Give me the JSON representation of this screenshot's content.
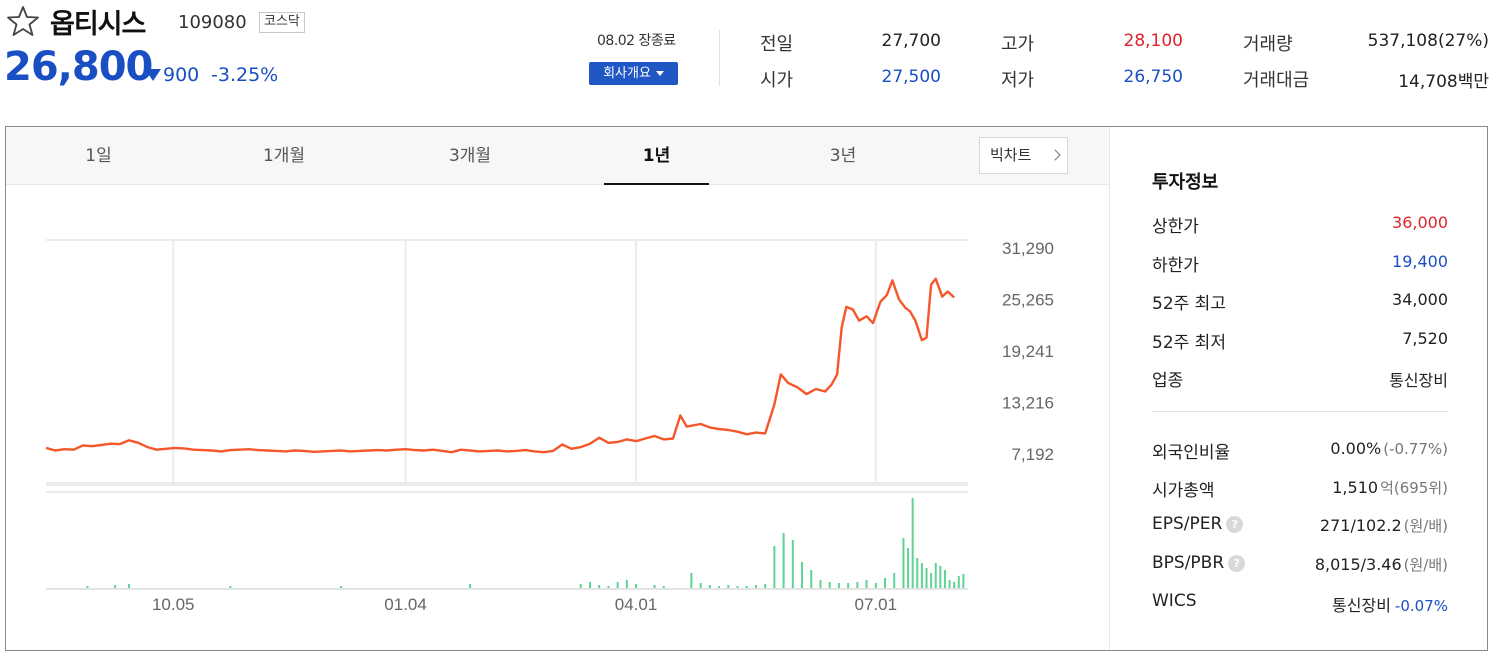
{
  "stock": {
    "name": "옵티시스",
    "code": "109080",
    "market": "코스닥",
    "price": "26,800",
    "change": "900",
    "change_pct": "-3.25%",
    "session": "08.02 장종료",
    "company_button": "회사개요"
  },
  "quotes": [
    {
      "label": "전일",
      "value": "27,700",
      "color": "#222222"
    },
    {
      "label": "시가",
      "value": "27,500",
      "color": "#1a4fc4"
    },
    {
      "label": "고가",
      "value": "28,100",
      "color": "#e0232c"
    },
    {
      "label": "저가",
      "value": "26,750",
      "color": "#1a4fc4"
    },
    {
      "label": "거래량",
      "value": "537,108(27%)",
      "color": "#222222"
    },
    {
      "label": "거래대금",
      "value": "14,708백만",
      "color": "#222222"
    }
  ],
  "tabs": [
    "1일",
    "1개월",
    "3개월",
    "1년",
    "3년"
  ],
  "active_tab": "1년",
  "bigchart_label": "빅차트",
  "invest": {
    "title": "투자정보",
    "rows": [
      {
        "label": "상한가",
        "value": "36,000",
        "color": "#e0232c"
      },
      {
        "label": "하한가",
        "value": "19,400",
        "color": "#1a4fc4"
      },
      {
        "label": "52주 최고",
        "value": "34,000",
        "color": "#222222"
      },
      {
        "label": "52주 최저",
        "value": "7,520",
        "color": "#222222"
      },
      {
        "label": "업종",
        "value": "통신장비",
        "color": "#222222"
      }
    ],
    "rows2": [
      {
        "label": "외국인비율",
        "value": "0.00%",
        "sub": "(-0.77%)",
        "help": false
      },
      {
        "label": "시가총액",
        "value": "1,510",
        "sub": "억(695위)",
        "help": false
      },
      {
        "label": "EPS/PER",
        "value": "271/102.2",
        "sub": "(원/배)",
        "help": true
      },
      {
        "label": "BPS/PBR",
        "value": "8,015/3.46",
        "sub": "(원/배)",
        "help": true
      },
      {
        "label": "WICS",
        "value": "통신장비",
        "sub": "-0.07%",
        "help": false,
        "sub_color": "#1a4fc4"
      }
    ]
  },
  "chart_data": {
    "type": "line",
    "price_color": "#f5572b",
    "volume_color": "#5fd394",
    "y_ticks": [
      "31,290",
      "25,265",
      "19,241",
      "13,216",
      "7,192"
    ],
    "y_tick_values": [
      31290,
      25265,
      19241,
      13216,
      7192
    ],
    "x_ticks": [
      "10.05",
      "01.04",
      "04.01",
      "07.01"
    ],
    "x_tick_positions": [
      0.138,
      0.39,
      0.64,
      0.9
    ],
    "price_series": [
      [
        0.0,
        7900
      ],
      [
        0.01,
        7600
      ],
      [
        0.02,
        7750
      ],
      [
        0.03,
        7700
      ],
      [
        0.04,
        8200
      ],
      [
        0.05,
        8100
      ],
      [
        0.06,
        8250
      ],
      [
        0.07,
        8400
      ],
      [
        0.08,
        8350
      ],
      [
        0.09,
        8800
      ],
      [
        0.1,
        8500
      ],
      [
        0.11,
        8000
      ],
      [
        0.12,
        7700
      ],
      [
        0.13,
        7800
      ],
      [
        0.14,
        7900
      ],
      [
        0.15,
        7850
      ],
      [
        0.16,
        7700
      ],
      [
        0.17,
        7650
      ],
      [
        0.18,
        7600
      ],
      [
        0.19,
        7500
      ],
      [
        0.2,
        7650
      ],
      [
        0.21,
        7700
      ],
      [
        0.22,
        7750
      ],
      [
        0.23,
        7650
      ],
      [
        0.24,
        7600
      ],
      [
        0.25,
        7550
      ],
      [
        0.26,
        7500
      ],
      [
        0.27,
        7600
      ],
      [
        0.28,
        7550
      ],
      [
        0.29,
        7450
      ],
      [
        0.3,
        7500
      ],
      [
        0.31,
        7550
      ],
      [
        0.32,
        7600
      ],
      [
        0.33,
        7500
      ],
      [
        0.34,
        7550
      ],
      [
        0.35,
        7600
      ],
      [
        0.36,
        7650
      ],
      [
        0.37,
        7600
      ],
      [
        0.38,
        7700
      ],
      [
        0.39,
        7750
      ],
      [
        0.4,
        7650
      ],
      [
        0.41,
        7600
      ],
      [
        0.42,
        7700
      ],
      [
        0.43,
        7550
      ],
      [
        0.44,
        7400
      ],
      [
        0.45,
        7700
      ],
      [
        0.46,
        7600
      ],
      [
        0.47,
        7500
      ],
      [
        0.48,
        7550
      ],
      [
        0.49,
        7600
      ],
      [
        0.5,
        7500
      ],
      [
        0.51,
        7550
      ],
      [
        0.52,
        7650
      ],
      [
        0.53,
        7500
      ],
      [
        0.54,
        7400
      ],
      [
        0.55,
        7550
      ],
      [
        0.56,
        8300
      ],
      [
        0.57,
        7800
      ],
      [
        0.58,
        8000
      ],
      [
        0.59,
        8400
      ],
      [
        0.6,
        9100
      ],
      [
        0.61,
        8500
      ],
      [
        0.62,
        8600
      ],
      [
        0.63,
        8900
      ],
      [
        0.64,
        8700
      ],
      [
        0.65,
        9000
      ],
      [
        0.66,
        9300
      ],
      [
        0.67,
        8900
      ],
      [
        0.68,
        9000
      ],
      [
        0.688,
        11700
      ],
      [
        0.695,
        10400
      ],
      [
        0.71,
        10700
      ],
      [
        0.72,
        10300
      ],
      [
        0.73,
        10100
      ],
      [
        0.74,
        10000
      ],
      [
        0.75,
        9800
      ],
      [
        0.76,
        9500
      ],
      [
        0.77,
        9700
      ],
      [
        0.78,
        9600
      ],
      [
        0.79,
        13000
      ],
      [
        0.797,
        16500
      ],
      [
        0.805,
        15500
      ],
      [
        0.815,
        15000
      ],
      [
        0.825,
        14200
      ],
      [
        0.835,
        14800
      ],
      [
        0.845,
        14500
      ],
      [
        0.852,
        15300
      ],
      [
        0.858,
        16500
      ],
      [
        0.863,
        22000
      ],
      [
        0.868,
        24400
      ],
      [
        0.875,
        24100
      ],
      [
        0.882,
        22800
      ],
      [
        0.89,
        23300
      ],
      [
        0.897,
        22500
      ],
      [
        0.905,
        25000
      ],
      [
        0.912,
        25800
      ],
      [
        0.918,
        27500
      ],
      [
        0.925,
        25300
      ],
      [
        0.932,
        24300
      ],
      [
        0.937,
        23900
      ],
      [
        0.943,
        22800
      ],
      [
        0.95,
        20500
      ],
      [
        0.955,
        20800
      ],
      [
        0.96,
        27000
      ],
      [
        0.965,
        27700
      ],
      [
        0.972,
        25600
      ],
      [
        0.978,
        26200
      ],
      [
        0.985,
        25500
      ]
    ],
    "volume_series": [
      [
        0.045,
        2
      ],
      [
        0.075,
        3
      ],
      [
        0.09,
        4
      ],
      [
        0.2,
        2
      ],
      [
        0.32,
        2
      ],
      [
        0.46,
        4
      ],
      [
        0.58,
        4
      ],
      [
        0.59,
        6
      ],
      [
        0.6,
        3
      ],
      [
        0.61,
        2
      ],
      [
        0.62,
        6
      ],
      [
        0.63,
        8
      ],
      [
        0.64,
        4
      ],
      [
        0.66,
        3
      ],
      [
        0.67,
        2
      ],
      [
        0.7,
        15
      ],
      [
        0.71,
        5
      ],
      [
        0.72,
        3
      ],
      [
        0.73,
        2
      ],
      [
        0.74,
        3
      ],
      [
        0.75,
        2
      ],
      [
        0.76,
        2
      ],
      [
        0.77,
        3
      ],
      [
        0.78,
        4
      ],
      [
        0.79,
        42
      ],
      [
        0.8,
        55
      ],
      [
        0.81,
        48
      ],
      [
        0.82,
        26
      ],
      [
        0.83,
        18
      ],
      [
        0.84,
        8
      ],
      [
        0.85,
        6
      ],
      [
        0.86,
        5
      ],
      [
        0.87,
        5
      ],
      [
        0.88,
        6
      ],
      [
        0.89,
        8
      ],
      [
        0.9,
        5
      ],
      [
        0.91,
        10
      ],
      [
        0.92,
        15
      ],
      [
        0.93,
        50
      ],
      [
        0.935,
        40
      ],
      [
        0.94,
        90
      ],
      [
        0.945,
        30
      ],
      [
        0.95,
        25
      ],
      [
        0.955,
        20
      ],
      [
        0.96,
        15
      ],
      [
        0.965,
        25
      ],
      [
        0.97,
        22
      ],
      [
        0.975,
        18
      ],
      [
        0.98,
        8
      ],
      [
        0.985,
        6
      ],
      [
        0.99,
        12
      ],
      [
        0.995,
        14
      ]
    ]
  }
}
